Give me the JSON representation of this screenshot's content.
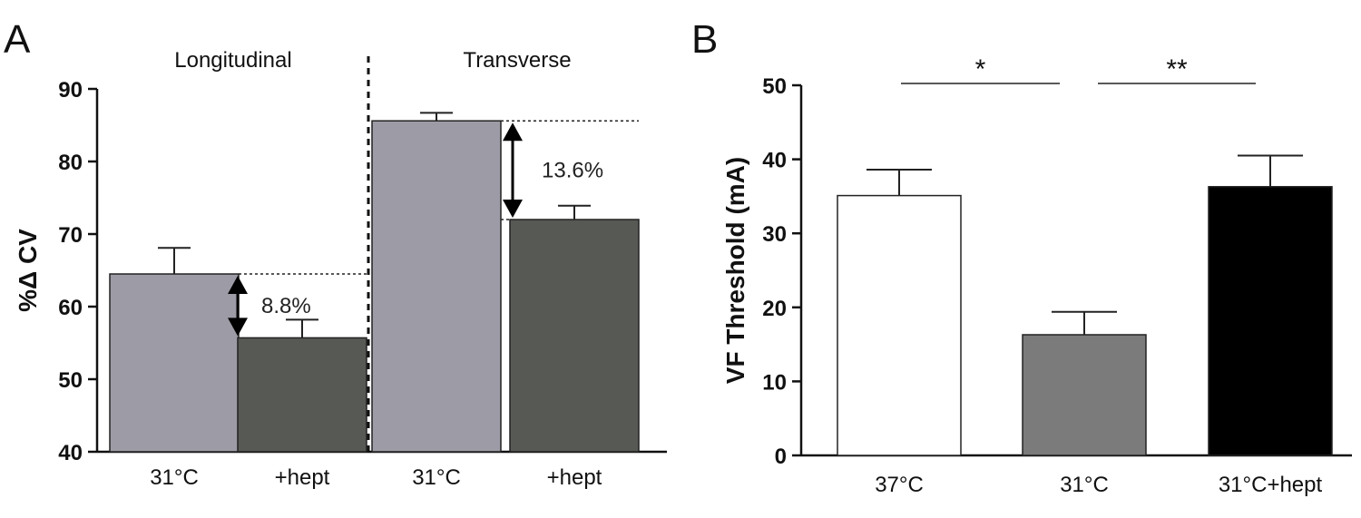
{
  "panels": {
    "a_letter": "A",
    "b_letter": "B"
  },
  "chart_data": [
    {
      "panel": "A",
      "type": "bar",
      "ylabel": "%Δ CV",
      "ylim": [
        40,
        90
      ],
      "yticks": [
        "40",
        "50",
        "60",
        "70",
        "80",
        "90"
      ],
      "groups": [
        {
          "title": "Longitudinal",
          "categories": [
            "31°C",
            "+hept"
          ],
          "values": [
            64.5,
            55.7
          ],
          "errors": [
            3.6,
            2.5
          ],
          "colors": [
            "#9d9ca6",
            "#575955"
          ],
          "annotation": "8.8%"
        },
        {
          "title": "Transverse",
          "categories": [
            "31°C",
            "+hept"
          ],
          "values": [
            85.6,
            72.0
          ],
          "errors": [
            1.1,
            1.9
          ],
          "colors": [
            "#9d9ca6",
            "#575955"
          ],
          "annotation": "13.6%"
        }
      ]
    },
    {
      "panel": "B",
      "type": "bar",
      "ylabel": "VF Threshold (mA)",
      "ylim": [
        0,
        50
      ],
      "yticks": [
        "0",
        "10",
        "20",
        "30",
        "40",
        "50"
      ],
      "categories": [
        "37°C",
        "31°C",
        "31°C+hept"
      ],
      "values": [
        35.1,
        16.3,
        36.3
      ],
      "errors": [
        3.5,
        3.1,
        4.2
      ],
      "colors": [
        "#ffffff",
        "#7b7b7b",
        "#000000"
      ],
      "significance": [
        {
          "between": [
            0,
            1
          ],
          "label": "*"
        },
        {
          "between": [
            1,
            2
          ],
          "label": "**"
        }
      ]
    }
  ]
}
